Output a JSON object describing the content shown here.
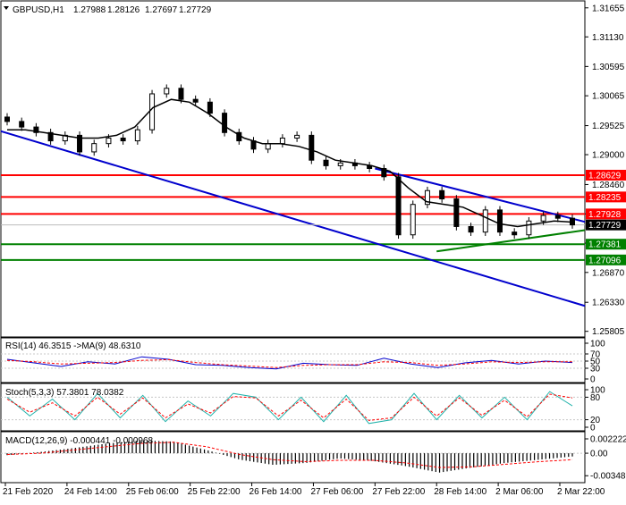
{
  "header": {
    "symbol": "GBPUSD,H1",
    "ohlc": [
      "1.27988",
      "1.28126",
      "1.27697",
      "1.27729"
    ]
  },
  "colors": {
    "resistance": "#ff0000",
    "support": "#008000",
    "trend_channel": "#0000cd",
    "support_trend": "#008000",
    "candle_body": "#000000",
    "moving_average": "#000000",
    "rsi": "#0000cd",
    "rsi_ma": "#ff0000",
    "stoch_main": "#20b2aa",
    "stoch_signal": "#ff0000",
    "macd_hist": "#000000",
    "macd_signal": "#ff0000",
    "current_price": "#000000"
  },
  "chart_data": [
    {
      "type": "candlestick",
      "title": "GBPUSD,H1",
      "x": [
        "21 Feb 2020",
        "24 Feb 14:00",
        "25 Feb 06:00",
        "25 Feb 22:00",
        "26 Feb 14:00",
        "27 Feb 06:00",
        "27 Feb 22:00",
        "28 Feb 14:00",
        "2 Mar 06:00",
        "2 Mar 22:00"
      ],
      "ylim": [
        1.258,
        1.317
      ],
      "y_ticks": [
        "1.31655",
        "1.31130",
        "1.30595",
        "1.30065",
        "1.29525",
        "1.29000",
        "1.28460",
        "1.27930",
        "1.27400",
        "1.26870",
        "1.26330",
        "1.25805"
      ],
      "close_path": [
        1.296,
        1.295,
        1.294,
        1.2925,
        1.2935,
        1.2905,
        1.292,
        1.293,
        1.2925,
        1.2945,
        1.301,
        1.302,
        1.3,
        1.2995,
        1.2975,
        1.294,
        1.2925,
        1.291,
        1.292,
        1.293,
        1.2935,
        1.289,
        1.288,
        1.2885,
        1.288,
        1.2875,
        1.286,
        1.2755,
        1.281,
        1.2835,
        1.282,
        1.277,
        1.276,
        1.28,
        1.276,
        1.2755,
        1.278,
        1.279,
        1.2785,
        1.2773
      ],
      "moving_average_path": [
        1.2945,
        1.2945,
        1.294,
        1.2935,
        1.293,
        1.293,
        1.2935,
        1.295,
        1.2985,
        1.3,
        1.2995,
        1.2975,
        1.295,
        1.293,
        1.292,
        1.292,
        1.2915,
        1.2905,
        1.289,
        1.2885,
        1.288,
        1.287,
        1.284,
        1.2815,
        1.281,
        1.2805,
        1.279,
        1.2775,
        1.277,
        1.2775,
        1.278,
        1.2778
      ],
      "current_price": "1.27729",
      "resistance_levels": [
        "1.28629",
        "1.28235",
        "1.27928"
      ],
      "support_levels": [
        "1.27381",
        "1.27096"
      ],
      "trend_lines": [
        {
          "from": [
            "21 Feb 2020",
            1.294
          ],
          "to": [
            "2 Mar 22:00",
            1.264
          ]
        },
        {
          "from": [
            "27 Feb 22:00",
            1.2875
          ],
          "to": [
            "2 Mar 22:00",
            1.279
          ]
        },
        {
          "from": [
            "28 Feb 14:00",
            1.2725
          ],
          "to": [
            "2 Mar 22:00",
            1.2757
          ]
        }
      ]
    },
    {
      "type": "line",
      "title": "RSI(14) 46.3515 ->MA(9) 48.6310",
      "ylim": [
        0,
        100
      ],
      "y_ticks": [
        "100",
        "70",
        "50",
        "30",
        "0"
      ],
      "series": [
        {
          "name": "RSI(14)",
          "values": [
            55,
            45,
            35,
            48,
            42,
            62,
            55,
            40,
            38,
            32,
            28,
            44,
            40,
            38,
            58,
            42,
            32,
            45,
            52,
            42,
            50,
            46
          ]
        },
        {
          "name": "MA(9)",
          "values": [
            52,
            48,
            42,
            44,
            46,
            52,
            54,
            46,
            40,
            36,
            32,
            38,
            40,
            40,
            48,
            46,
            38,
            42,
            48,
            46,
            48,
            48
          ]
        }
      ]
    },
    {
      "type": "line",
      "title": "Stoch(5,3,3) 57.3801 78.0382",
      "ylim": [
        0,
        100
      ],
      "y_ticks": [
        "100",
        "80",
        "20",
        "0"
      ],
      "series": [
        {
          "name": "Stoch(5,3,3)",
          "values": [
            80,
            30,
            75,
            20,
            90,
            25,
            85,
            15,
            70,
            30,
            90,
            80,
            20,
            80,
            15,
            85,
            10,
            20,
            90,
            20,
            85,
            25,
            80,
            20,
            95,
            57
          ]
        },
        {
          "name": "Signal",
          "values": [
            75,
            40,
            65,
            30,
            80,
            35,
            78,
            25,
            62,
            38,
            82,
            78,
            30,
            72,
            25,
            75,
            18,
            25,
            80,
            30,
            78,
            32,
            72,
            28,
            88,
            78
          ]
        }
      ]
    },
    {
      "type": "bar",
      "title": "MACD(12,26,9) -0.000441 -0.000968",
      "ylim": [
        -0.004,
        0.0025
      ],
      "y_ticks": [
        "0.002222",
        "0.00",
        "-0.003481"
      ],
      "series": [
        {
          "name": "MACD",
          "values": [
            -0.0003,
            0.0002,
            0.0008,
            0.0015,
            0.002,
            0.0018,
            0.0005,
            -0.001,
            -0.0018,
            -0.0015,
            -0.0008,
            -0.0012,
            -0.002,
            -0.003,
            -0.0022,
            -0.0015,
            -0.001,
            -0.0005
          ]
        },
        {
          "name": "Signal",
          "values": [
            -0.0002,
            0.0,
            0.0005,
            0.001,
            0.0015,
            0.0017,
            0.001,
            -0.0002,
            -0.001,
            -0.0013,
            -0.0011,
            -0.0011,
            -0.0015,
            -0.0022,
            -0.0021,
            -0.0017,
            -0.0013,
            -0.001
          ]
        }
      ]
    }
  ]
}
